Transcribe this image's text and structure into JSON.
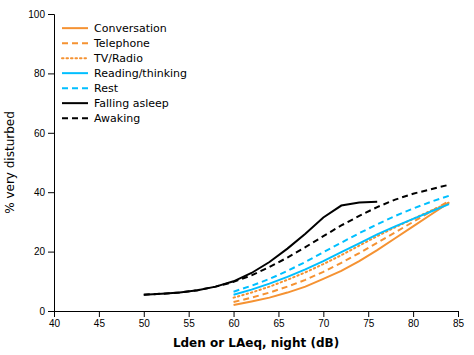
{
  "chart_data": {
    "type": "line",
    "x_label": "Lden or LAeq, night (dB)",
    "y_label": "% very disturbed",
    "xlim": [
      40,
      85
    ],
    "ylim": [
      0,
      100
    ],
    "xticks": [
      40,
      45,
      50,
      55,
      60,
      65,
      70,
      75,
      80,
      85
    ],
    "yticks": [
      0,
      20,
      40,
      60,
      80,
      100
    ],
    "legend": "upper left",
    "series": [
      {
        "name": "Conversation",
        "color": "#F59232",
        "line_style": "solid",
        "x": [
          60,
          62,
          64,
          66,
          68,
          70,
          72,
          74,
          76,
          78,
          80,
          82,
          84
        ],
        "values": [
          2.0,
          3.2,
          4.5,
          6.2,
          8.2,
          10.8,
          13.5,
          16.8,
          20.5,
          24.5,
          28.5,
          32.5,
          36.5
        ]
      },
      {
        "name": "Telephone",
        "color": "#F59232",
        "line_style": "dashed",
        "x": [
          60,
          62,
          64,
          66,
          68,
          70,
          72,
          74,
          76,
          78,
          80,
          82,
          84
        ],
        "values": [
          3.0,
          4.5,
          6.2,
          8.2,
          10.5,
          13.2,
          16.2,
          19.5,
          23.0,
          26.5,
          30.0,
          33.5,
          37.0
        ]
      },
      {
        "name": "TV/Radio",
        "color": "#F59232",
        "line_style": "dotted",
        "x": [
          60,
          62,
          64,
          66,
          68,
          70,
          72,
          74,
          76,
          78,
          80,
          82,
          84
        ],
        "values": [
          4.5,
          6.2,
          8.2,
          10.5,
          13.0,
          15.8,
          18.8,
          22.0,
          25.2,
          28.2,
          31.0,
          33.8,
          36.5
        ]
      },
      {
        "name": "Reading/thinking",
        "color": "#00BFFF",
        "line_style": "solid",
        "x": [
          60,
          62,
          64,
          66,
          68,
          70,
          72,
          74,
          76,
          78,
          80,
          82,
          84
        ],
        "values": [
          5.5,
          7.2,
          9.2,
          11.5,
          14.0,
          16.8,
          19.8,
          22.8,
          25.8,
          28.5,
          31.0,
          33.5,
          36.0
        ]
      },
      {
        "name": "Rest",
        "color": "#00BFFF",
        "line_style": "dashed",
        "x": [
          60,
          62,
          64,
          66,
          68,
          70,
          72,
          74,
          76,
          78,
          80,
          82,
          84
        ],
        "values": [
          6.5,
          8.5,
          10.8,
          13.5,
          16.5,
          19.8,
          23.0,
          26.2,
          29.2,
          32.0,
          34.5,
          36.8,
          38.8
        ]
      },
      {
        "name": "Falling asleep",
        "color": "#000000",
        "line_style": "solid",
        "x": [
          50,
          52,
          54,
          56,
          58,
          60,
          62,
          64,
          66,
          68,
          70,
          72,
          74,
          76
        ],
        "values": [
          5.5,
          5.8,
          6.2,
          7.0,
          8.2,
          10.0,
          12.8,
          16.5,
          21.0,
          26.0,
          31.5,
          35.5,
          36.5,
          36.8
        ]
      },
      {
        "name": "Awaking",
        "color": "#000000",
        "line_style": "dashed",
        "x": [
          50,
          52,
          54,
          56,
          58,
          60,
          62,
          64,
          66,
          68,
          70,
          72,
          74,
          76,
          78,
          80,
          82,
          84
        ],
        "values": [
          5.5,
          5.8,
          6.2,
          7.0,
          8.2,
          9.8,
          12.0,
          14.8,
          18.0,
          21.5,
          25.2,
          28.8,
          32.0,
          35.0,
          37.5,
          39.5,
          41.0,
          42.5
        ]
      }
    ]
  }
}
